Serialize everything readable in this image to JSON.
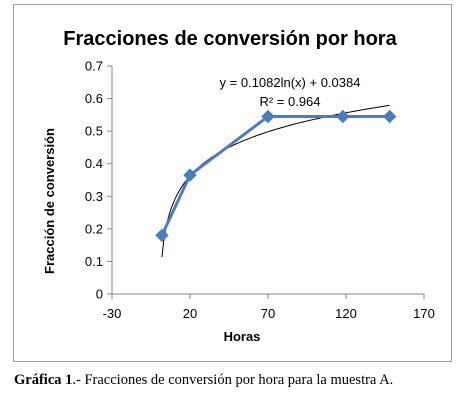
{
  "chart_data": {
    "type": "line",
    "title": "Fracciones de conversión por hora",
    "xlabel": "Horas",
    "ylabel": "Fracción de conversión",
    "xlim": [
      -30,
      170
    ],
    "ylim": [
      0,
      0.7
    ],
    "x_ticks": [
      "-30",
      "20",
      "70",
      "120",
      "170"
    ],
    "y_ticks": [
      "0",
      "0.1",
      "0.2",
      "0.3",
      "0.4",
      "0.5",
      "0.6",
      "0.7"
    ],
    "grid": false,
    "legend": "none",
    "series": [
      {
        "x": [
          2,
          20,
          70,
          118,
          148
        ],
        "y": [
          0.18,
          0.365,
          0.545,
          0.545,
          0.545
        ],
        "marker": "diamond",
        "color": "#4a7ebb"
      }
    ],
    "trendline": {
      "kind": "logarithmic",
      "a": 0.1082,
      "b": 0.0384,
      "x_range": [
        2,
        148
      ],
      "color": "#000000",
      "equation": "y = 0.1082ln(x) + 0.0384",
      "r_squared": "R² = 0.964"
    }
  },
  "caption": {
    "label": "Gráfica 1",
    "text": ".- Fracciones de conversión por hora para la muestra A."
  }
}
